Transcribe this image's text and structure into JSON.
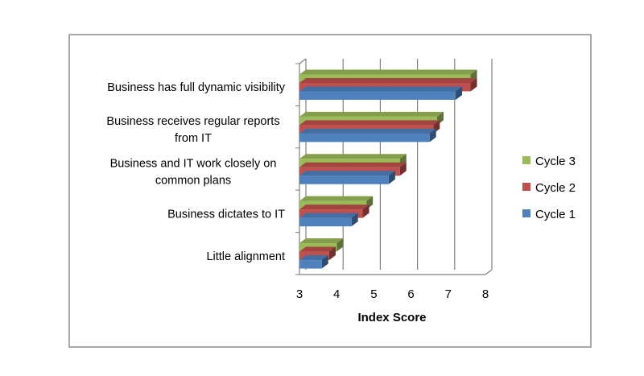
{
  "chart_data": {
    "type": "bar",
    "orientation": "horizontal",
    "style": "3d-clustered",
    "categories": [
      "Little alignment",
      "Business dictates to IT",
      "Business and IT work closely on common plans",
      "Business receives regular reports from IT",
      "Business has full dynamic visibility"
    ],
    "category_lines": [
      [
        "Little alignment"
      ],
      [
        "Business dictates to IT"
      ],
      [
        "Business and IT work closely on",
        "common plans"
      ],
      [
        "Business receives regular reports",
        "from IT"
      ],
      [
        "Business has full dynamic visibility"
      ]
    ],
    "series": [
      {
        "name": "Cycle 1",
        "color": "#4f81bd",
        "values": [
          3.6,
          4.4,
          5.4,
          6.5,
          7.2
        ]
      },
      {
        "name": "Cycle 2",
        "color": "#c0504d",
        "values": [
          3.8,
          4.7,
          5.7,
          6.6,
          7.6
        ]
      },
      {
        "name": "Cycle 3",
        "color": "#9bbb59",
        "values": [
          4.0,
          4.8,
          5.7,
          6.7,
          7.6
        ]
      }
    ],
    "xlabel": "Index Score",
    "xlim": [
      3,
      8
    ],
    "xticks": [
      "3",
      "4",
      "5",
      "6",
      "7",
      "8"
    ],
    "grid": true,
    "legend_position": "right",
    "legend_order": [
      "Cycle 3",
      "Cycle 2",
      "Cycle 1"
    ]
  }
}
